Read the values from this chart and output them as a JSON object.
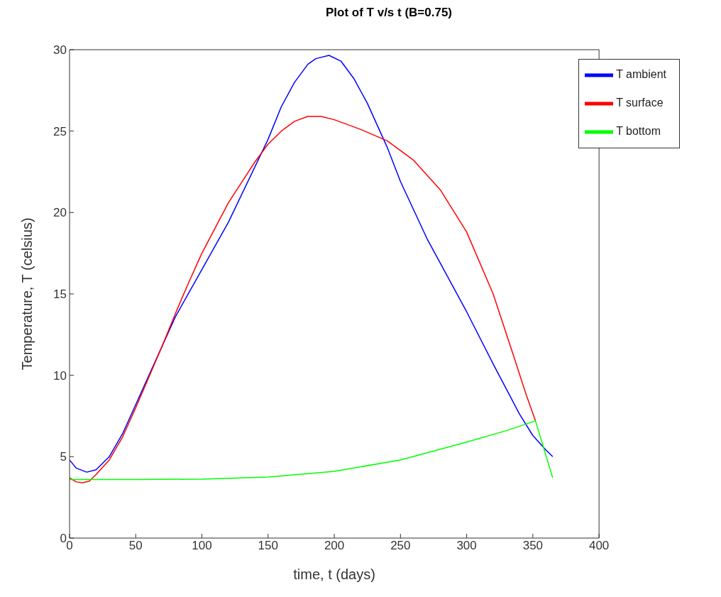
{
  "chart_data": {
    "type": "line",
    "title": "Plot of T v/s t (B=0.75)",
    "xlabel": "time, t (days)",
    "ylabel": "Temperature, T (celsius)",
    "xlim": [
      0,
      400
    ],
    "xticks": [
      0,
      50,
      100,
      150,
      200,
      250,
      300,
      350,
      400
    ],
    "ylim": [
      0,
      30
    ],
    "yticks": [
      0,
      5,
      10,
      15,
      20,
      25,
      30
    ],
    "grid": false,
    "legend": "top right",
    "marker": "none",
    "line_style": "solid",
    "series": [
      {
        "name": "T ambient",
        "color": "#0000ff",
        "x": [
          0,
          5,
          13,
          20,
          30,
          40,
          50,
          60,
          70,
          80,
          100,
          120,
          140,
          150,
          160,
          170,
          180,
          186,
          196,
          205,
          215,
          225,
          240,
          250,
          270,
          300,
          320,
          340,
          350,
          360,
          365
        ],
        "values": [
          4.8,
          4.3,
          4.05,
          4.2,
          5.0,
          6.4,
          8.2,
          10.0,
          11.8,
          13.6,
          16.5,
          19.4,
          22.8,
          24.5,
          26.5,
          28.0,
          29.1,
          29.45,
          29.65,
          29.3,
          28.2,
          26.7,
          24.0,
          21.9,
          18.4,
          13.9,
          10.7,
          7.6,
          6.3,
          5.4,
          5.0
        ]
      },
      {
        "name": "T surface",
        "color": "#ff0000",
        "x": [
          0,
          5,
          10,
          15,
          20,
          30,
          40,
          50,
          60,
          70,
          80,
          90,
          100,
          120,
          140,
          150,
          160,
          170,
          180,
          190,
          200,
          220,
          240,
          260,
          280,
          300,
          320,
          335,
          345,
          352
        ],
        "values": [
          3.7,
          3.45,
          3.4,
          3.5,
          3.9,
          4.8,
          6.2,
          8.0,
          9.9,
          11.8,
          13.8,
          15.7,
          17.5,
          20.6,
          23.1,
          24.2,
          25.0,
          25.6,
          25.9,
          25.9,
          25.7,
          25.1,
          24.4,
          23.2,
          21.4,
          18.8,
          15.0,
          11.3,
          8.8,
          7.2
        ]
      },
      {
        "name": "T bottom",
        "color": "#00ff00",
        "x": [
          0,
          50,
          100,
          150,
          200,
          250,
          300,
          330,
          352,
          365
        ],
        "values": [
          3.6,
          3.6,
          3.62,
          3.75,
          4.1,
          4.8,
          5.9,
          6.6,
          7.2,
          3.7
        ]
      }
    ]
  }
}
